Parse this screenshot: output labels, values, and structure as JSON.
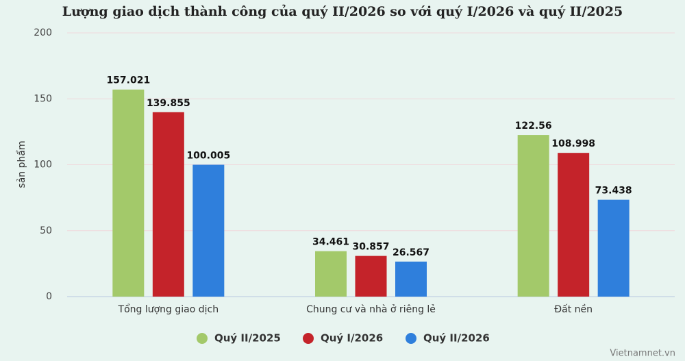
{
  "chart_data": {
    "type": "bar",
    "title": "Lượng giao dịch thành công của quý II/2026 so với quý I/2026 và quý II/2025",
    "y_label": "sản phẩm",
    "categories": [
      "Tổng lượng giao dịch",
      "Chung cư và nhà ở riêng lẻ",
      "Đất nền"
    ],
    "series": [
      {
        "name": "Quý II/2025",
        "color": "#a3c96a",
        "values": [
          157.021,
          34.461,
          122.56
        ]
      },
      {
        "name": "Quý I/2026",
        "color": "#c4232a",
        "values": [
          139.855,
          30.857,
          108.998
        ]
      },
      {
        "name": "Quý II/2026",
        "color": "#2f7fdc",
        "values": [
          100.005,
          26.567,
          73.438
        ]
      }
    ],
    "ylim": [
      0,
      200
    ],
    "yticks": [
      0,
      50,
      100,
      150,
      200
    ],
    "grid": true,
    "legend": "bottom",
    "watermark": "Vietnamnet.vn"
  }
}
